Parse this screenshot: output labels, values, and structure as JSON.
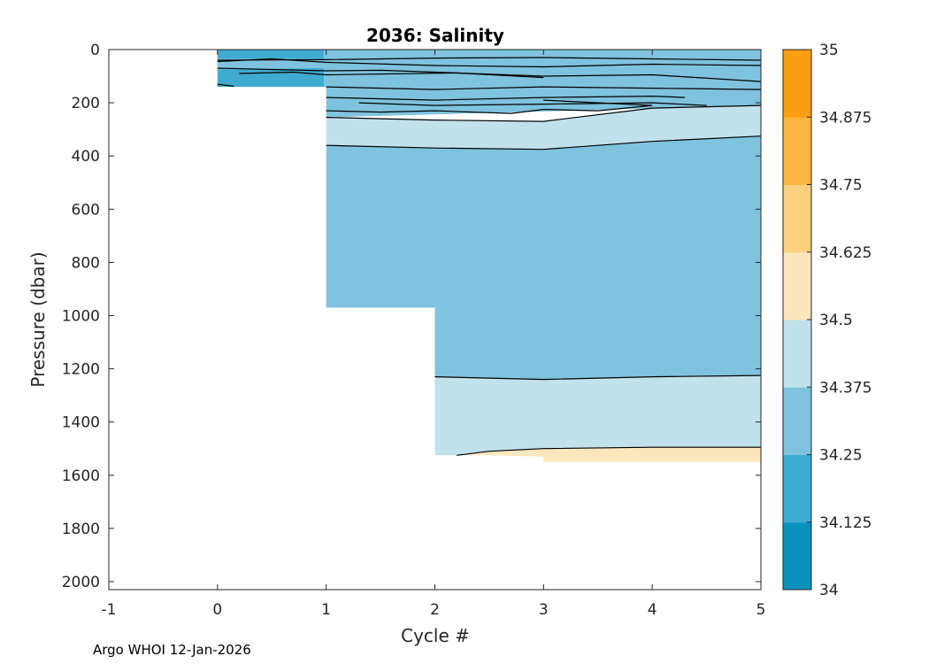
{
  "chart_data": {
    "type": "heatmap",
    "subtype": "filled-contour",
    "title": "2036:  Salinity",
    "xlabel": "Cycle #",
    "ylabel": "Pressure (dbar)",
    "xlim": [
      -1,
      5
    ],
    "ylim": [
      0,
      2030
    ],
    "y_reversed": true,
    "x_ticks": [
      -1,
      0,
      1,
      2,
      3,
      4,
      5
    ],
    "y_ticks": [
      0,
      200,
      400,
      600,
      800,
      1000,
      1200,
      1400,
      1600,
      1800,
      2000
    ],
    "colorbar": {
      "limits": [
        34,
        35
      ],
      "ticks": [
        "34",
        "34.125",
        "34.25",
        "34.375",
        "34.5",
        "34.625",
        "34.75",
        "34.875",
        "35"
      ],
      "colors": [
        "#0a92bd",
        "#40abd0",
        "#7fc3de",
        "#c1e1ed",
        "#fce6be",
        "#fbd07f",
        "#fbb541",
        "#fb9e11"
      ]
    },
    "regions": [
      {
        "name": "cycle0-upper",
        "level_range": [
          34.125,
          34.25
        ],
        "color": "#40abd0",
        "points": [
          [
            0,
            0
          ],
          [
            0.98,
            0
          ],
          [
            0.98,
            140
          ],
          [
            0,
            140
          ]
        ]
      },
      {
        "name": "cycle0-band",
        "level_range": [
          34.25,
          34.375
        ],
        "color": "#7fc3de",
        "points": [
          [
            0,
            35
          ],
          [
            0.98,
            35
          ],
          [
            0.98,
            70
          ],
          [
            0,
            75
          ]
        ]
      },
      {
        "name": "upper-main",
        "level_range": [
          34.25,
          34.375
        ],
        "color": "#7fc3de",
        "points": [
          [
            0.98,
            0
          ],
          [
            5,
            0
          ],
          [
            5,
            210
          ],
          [
            1,
            255
          ],
          [
            1,
            140
          ],
          [
            0.98,
            140
          ]
        ]
      },
      {
        "name": "mid-fresh-band",
        "level_range": [
          34.375,
          34.5
        ],
        "color": "#c1e1ed",
        "points": [
          [
            1,
            255
          ],
          [
            2,
            265
          ],
          [
            3,
            270
          ],
          [
            4,
            220
          ],
          [
            5,
            210
          ],
          [
            5,
            325
          ],
          [
            4,
            345
          ],
          [
            3,
            375
          ],
          [
            2,
            370
          ],
          [
            1,
            360
          ]
        ]
      },
      {
        "name": "intermediate",
        "level_range": [
          34.25,
          34.375
        ],
        "color": "#7fc3de",
        "points": [
          [
            1,
            360
          ],
          [
            2,
            370
          ],
          [
            3,
            375
          ],
          [
            4,
            345
          ],
          [
            5,
            325
          ],
          [
            5,
            1225
          ],
          [
            4,
            1230
          ],
          [
            3,
            1240
          ],
          [
            2,
            1230
          ],
          [
            2,
            970
          ],
          [
            1,
            970
          ]
        ]
      },
      {
        "name": "deep-fresh-band",
        "level_range": [
          34.375,
          34.5
        ],
        "color": "#c1e1ed",
        "points": [
          [
            2,
            1230
          ],
          [
            3,
            1240
          ],
          [
            4,
            1230
          ],
          [
            5,
            1225
          ],
          [
            5,
            1495
          ],
          [
            4,
            1495
          ],
          [
            3,
            1500
          ],
          [
            2.5,
            1510
          ],
          [
            2.2,
            1525
          ],
          [
            2,
            1525
          ]
        ]
      },
      {
        "name": "deep-salty",
        "level_range": [
          34.5,
          34.625
        ],
        "color": "#fce6be",
        "points": [
          [
            2.2,
            1525
          ],
          [
            2.5,
            1510
          ],
          [
            3,
            1500
          ],
          [
            4,
            1495
          ],
          [
            5,
            1495
          ],
          [
            5,
            1550
          ],
          [
            3,
            1550
          ],
          [
            3,
            1530
          ],
          [
            2.5,
            1525
          ]
        ]
      }
    ],
    "contours": [
      [
        [
          0,
          40
        ],
        [
          1,
          38
        ],
        [
          2,
          32
        ],
        [
          3,
          30
        ],
        [
          4,
          35
        ],
        [
          5,
          40
        ]
      ],
      [
        [
          0,
          45
        ],
        [
          0.5,
          35
        ],
        [
          1,
          48
        ],
        [
          2,
          60
        ],
        [
          3,
          65
        ],
        [
          4,
          55
        ],
        [
          5,
          60
        ]
      ],
      [
        [
          0,
          70
        ],
        [
          0.5,
          75
        ],
        [
          1,
          80
        ],
        [
          1.5,
          78
        ],
        [
          2,
          85
        ],
        [
          3,
          100
        ],
        [
          4,
          95
        ],
        [
          5,
          120
        ]
      ],
      [
        [
          0.2,
          90
        ],
        [
          0.7,
          85
        ],
        [
          1,
          95
        ],
        [
          2.2,
          88
        ],
        [
          3,
          105
        ]
      ],
      [
        [
          0,
          130
        ],
        [
          0.15,
          138
        ]
      ],
      [
        [
          1,
          140
        ],
        [
          2,
          150
        ],
        [
          3,
          140
        ],
        [
          4,
          145
        ],
        [
          5,
          150
        ]
      ],
      [
        [
          1,
          180
        ],
        [
          2,
          190
        ],
        [
          3,
          180
        ],
        [
          4,
          175
        ],
        [
          4.3,
          180
        ]
      ],
      [
        [
          1.3,
          200
        ],
        [
          2,
          210
        ],
        [
          3,
          205
        ],
        [
          4,
          200
        ],
        [
          4.5,
          210
        ]
      ],
      [
        [
          1,
          230
        ],
        [
          1.5,
          235
        ],
        [
          2,
          230
        ],
        [
          2.7,
          240
        ],
        [
          3,
          225
        ]
      ],
      [
        [
          3,
          190
        ],
        [
          3.5,
          200
        ],
        [
          4,
          210
        ],
        [
          3.5,
          230
        ],
        [
          3,
          225
        ]
      ],
      [
        [
          1,
          255
        ],
        [
          2,
          265
        ],
        [
          3,
          270
        ],
        [
          4,
          220
        ],
        [
          5,
          210
        ]
      ],
      [
        [
          1,
          360
        ],
        [
          2,
          370
        ],
        [
          3,
          375
        ],
        [
          4,
          345
        ],
        [
          5,
          325
        ]
      ],
      [
        [
          2,
          1230
        ],
        [
          3,
          1240
        ],
        [
          4,
          1230
        ],
        [
          5,
          1225
        ]
      ],
      [
        [
          2.2,
          1525
        ],
        [
          2.5,
          1510
        ],
        [
          3,
          1500
        ],
        [
          4,
          1495
        ],
        [
          5,
          1495
        ]
      ]
    ]
  },
  "footer": "Argo WHOI 12-Jan-2026"
}
